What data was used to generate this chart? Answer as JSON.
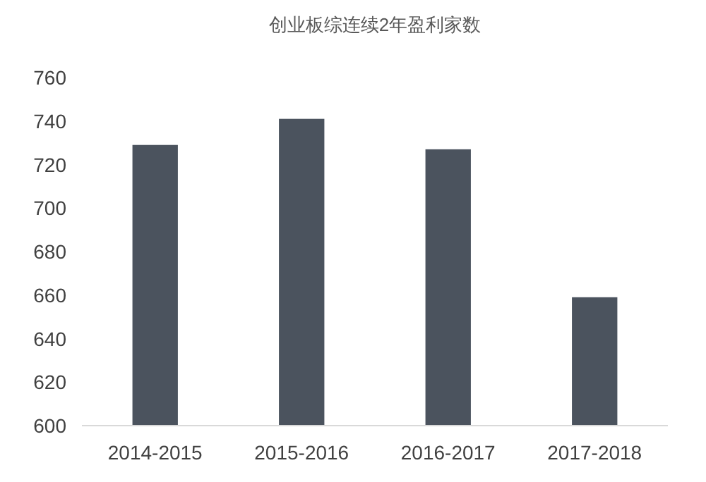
{
  "chart_data": {
    "type": "bar",
    "title": "创业板综连续2年盈利家数",
    "categories": [
      "2014-2015",
      "2015-2016",
      "2016-2017",
      "2017-2018"
    ],
    "values": [
      729,
      741,
      727,
      659
    ],
    "color": "#4b535e",
    "ylim": [
      600,
      760
    ],
    "yticks": [
      600,
      620,
      640,
      660,
      680,
      700,
      720,
      740,
      760
    ],
    "grid": false
  }
}
